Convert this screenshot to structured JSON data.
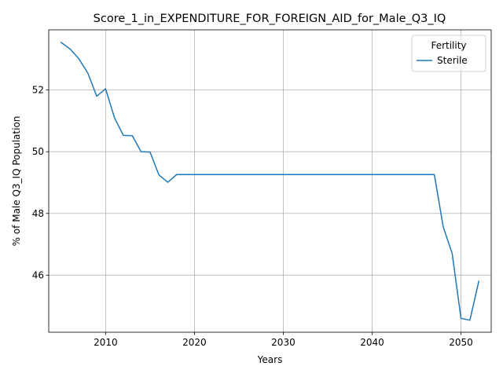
{
  "chart_data": {
    "type": "line",
    "title": "Score_1_in_EXPENDITURE_FOR_FOREIGN_AID_for_Male_Q3_IQ",
    "xlabel": "Years",
    "ylabel": "% of Male Q3_IQ Population",
    "xlim": [
      2003.6,
      2053.4
    ],
    "ylim": [
      44.15,
      53.95
    ],
    "xticks": [
      2010,
      2020,
      2030,
      2040,
      2050
    ],
    "yticks": [
      46,
      48,
      50,
      52
    ],
    "grid": true,
    "legend": {
      "title": "Fertility",
      "placement": "top-right"
    },
    "series": [
      {
        "name": "Sterile",
        "color": "#1f77b4",
        "x": [
          2005,
          2006,
          2007,
          2008,
          2009,
          2010,
          2011,
          2012,
          2013,
          2014,
          2015,
          2016,
          2017,
          2018,
          2019,
          2020,
          2021,
          2022,
          2023,
          2024,
          2025,
          2026,
          2027,
          2028,
          2029,
          2030,
          2031,
          2032,
          2033,
          2034,
          2035,
          2036,
          2037,
          2038,
          2039,
          2040,
          2041,
          2042,
          2043,
          2044,
          2045,
          2046,
          2047,
          2048,
          2049,
          2050,
          2051,
          2052
        ],
        "y": [
          53.54,
          53.33,
          53.01,
          52.55,
          51.8,
          52.04,
          51.1,
          50.53,
          50.52,
          50.0,
          49.99,
          49.25,
          49.01,
          49.26,
          49.26,
          49.26,
          49.26,
          49.26,
          49.26,
          49.26,
          49.26,
          49.26,
          49.26,
          49.26,
          49.26,
          49.26,
          49.26,
          49.26,
          49.26,
          49.26,
          49.26,
          49.26,
          49.26,
          49.26,
          49.26,
          49.26,
          49.26,
          49.26,
          49.26,
          49.26,
          49.26,
          49.26,
          49.26,
          47.56,
          46.71,
          44.6,
          44.54,
          45.8
        ]
      }
    ]
  }
}
